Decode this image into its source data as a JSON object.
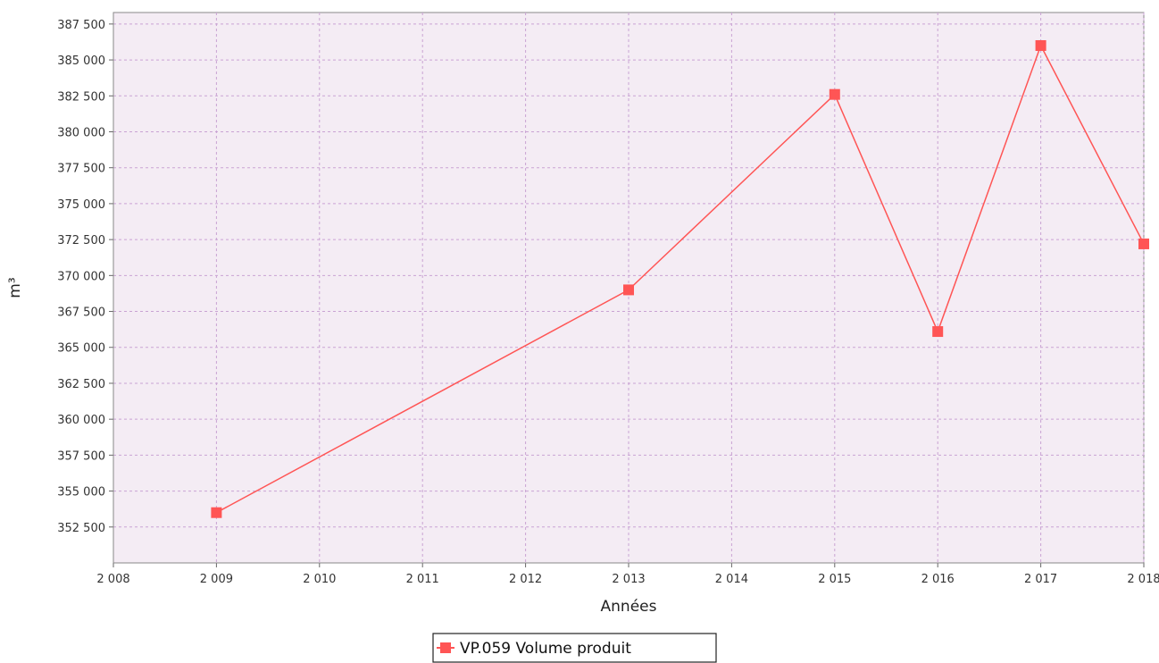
{
  "chart_data": {
    "type": "line",
    "title": "",
    "xlabel": "Années",
    "ylabel": "m³",
    "xlim": [
      2008,
      2018
    ],
    "ylim": [
      350000,
      388300
    ],
    "x_ticks": [
      2008,
      2009,
      2010,
      2011,
      2012,
      2013,
      2014,
      2015,
      2016,
      2017,
      2018
    ],
    "x_tick_labels": [
      "2 008",
      "2 009",
      "2 010",
      "2 011",
      "2 012",
      "2 013",
      "2 014",
      "2 015",
      "2 016",
      "2 017",
      "2 018"
    ],
    "y_ticks": [
      352500,
      355000,
      357500,
      360000,
      362500,
      365000,
      367500,
      370000,
      372500,
      375000,
      377500,
      380000,
      382500,
      385000,
      387500
    ],
    "y_tick_labels": [
      "352 500",
      "355 000",
      "357 500",
      "360 000",
      "362 500",
      "365 000",
      "367 500",
      "370 000",
      "372 500",
      "375 000",
      "377 500",
      "380 000",
      "382 500",
      "385 000",
      "387 500"
    ],
    "grid": true,
    "legend_position": "bottom-center",
    "series": [
      {
        "name": "VP.059 Volume produit",
        "color": "#ff5555",
        "marker": "square",
        "x": [
          2009,
          2013,
          2015,
          2016,
          2017,
          2018
        ],
        "y": [
          353500,
          369000,
          382600,
          366100,
          386000,
          372200
        ]
      }
    ]
  },
  "colors": {
    "plot_background": "#f4ecf4",
    "grid": "#c9a3d3",
    "axis": "#888888"
  }
}
